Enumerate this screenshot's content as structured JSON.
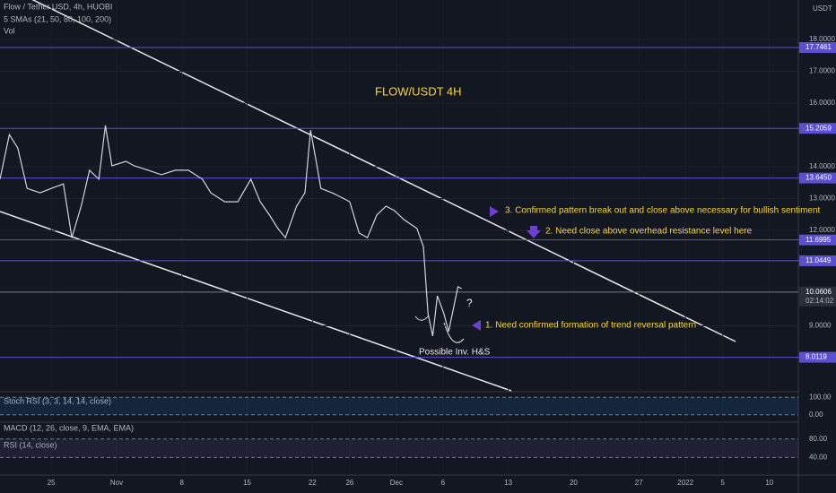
{
  "chart_data": {
    "type": "line",
    "title": "FLOW/USDT 4H",
    "indicators_label": "5 SMAs (21, 50, 80, 100, 200)",
    "volume_label": "Vol",
    "currency": "USDT",
    "countdown": "02:14:02",
    "annotations": [
      "3. Confirmed pattern break out and close above necessary for bullish sentiment",
      "2. Need close above overhead resistance level here",
      "1. Need confirmed formation of trend reversal pattern",
      "Possible Inv. H&S",
      "?"
    ],
    "xlim": [
      -5.5,
      80.1
    ],
    "xticks": [
      {
        "value": 0,
        "label": "25"
      },
      {
        "value": 7,
        "label": "Nov"
      },
      {
        "value": 14,
        "label": "8"
      },
      {
        "value": 21,
        "label": "15"
      },
      {
        "value": 28,
        "label": "22"
      },
      {
        "value": 32,
        "label": "26"
      },
      {
        "value": 37,
        "label": "Dec"
      },
      {
        "value": 42,
        "label": "6"
      },
      {
        "value": 49,
        "label": "13"
      },
      {
        "value": 56,
        "label": "20"
      },
      {
        "value": 63,
        "label": "27"
      },
      {
        "value": 68,
        "label": "2022"
      },
      {
        "value": 72,
        "label": "5"
      },
      {
        "value": 77,
        "label": "10"
      }
    ],
    "ylim": [
      6.93,
      19.24
    ],
    "yticks": [
      {
        "value": 18,
        "label": "18.0000"
      },
      {
        "value": 17,
        "label": "17.0000"
      },
      {
        "value": 16,
        "label": "16.0000"
      },
      {
        "value": 14,
        "label": "14.0000"
      },
      {
        "value": 13,
        "label": "13.0000"
      },
      {
        "value": 12,
        "label": "12.0000"
      },
      {
        "value": 9,
        "label": "9.0000"
      }
    ],
    "levels": [
      17.7461,
      15.2059,
      13.645,
      11.6995,
      11.0449,
      8.0119
    ],
    "level_labels": [
      "17.7461",
      "15.2059",
      "13.6450",
      "11.6995",
      "11.0449",
      "8.0119"
    ],
    "level_color": "#5b4fd1",
    "last_price": 10.0606,
    "series": [
      {
        "name": "Flow / Tether USD, 4h, HUOBI",
        "color": "#d1d4dc",
        "x": [
          -5.5,
          -4.5,
          -3.6,
          -2.6,
          -1.2,
          0,
          1.3,
          2.2,
          3.2,
          4.1,
          5.1,
          5.8,
          6.5,
          8.0,
          8.9,
          10.4,
          11.8,
          13.3,
          14.7,
          16.2,
          17.1,
          18.6,
          20.0,
          21.4,
          22.4,
          23.4,
          24.3,
          25.1,
          26.3,
          27.2,
          27.8,
          28.4,
          28.9,
          30.1,
          31.1,
          32.0,
          33.0,
          33.9,
          34.9,
          35.9,
          36.8,
          37.8,
          39.2,
          39.9,
          40.4,
          40.9,
          41.4,
          42.1,
          42.6,
          43.1,
          43.6,
          44.0
        ],
        "values": [
          13.61,
          15.01,
          14.59,
          13.32,
          13.18,
          13.32,
          13.46,
          11.77,
          12.76,
          13.89,
          13.61,
          15.3,
          14.03,
          14.17,
          14.03,
          13.89,
          13.75,
          13.89,
          13.89,
          13.61,
          13.18,
          12.9,
          12.9,
          13.61,
          12.9,
          12.48,
          12.06,
          11.77,
          12.76,
          13.18,
          15.15,
          14.17,
          13.32,
          13.18,
          13.04,
          12.9,
          11.92,
          11.77,
          12.48,
          12.76,
          12.62,
          12.34,
          12.06,
          11.49,
          9.38,
          8.68,
          9.94,
          9.38,
          8.82,
          9.52,
          10.23,
          10.17
        ]
      }
    ],
    "stoch_rsi": {
      "label": "Stoch RSI (3, 3, 14, 14, close)",
      "ylim": [
        -42,
        131.6
      ],
      "yticks": [
        {
          "value": 100,
          "label": "100.00"
        },
        {
          "value": 0,
          "label": "0.00"
        }
      ]
    },
    "macd": {
      "label": "MACD (12, 26, close, 9, EMA, EMA)"
    },
    "rsi": {
      "label": "RSI (14, close)",
      "ylim": [
        1.7,
        116.5
      ],
      "yticks": [
        {
          "value": 80,
          "label": "80.00"
        },
        {
          "value": 40,
          "label": "40.00"
        }
      ]
    }
  }
}
